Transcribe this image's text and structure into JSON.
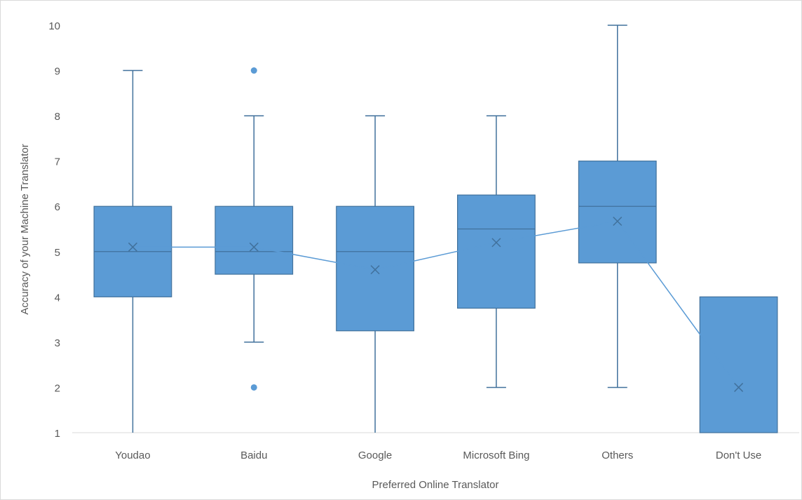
{
  "chart_data": {
    "type": "box",
    "title": "",
    "xlabel": "Preferred Online Translator",
    "ylabel": "Accuracy of your Machine Translator",
    "ylim": [
      1,
      10
    ],
    "yticks": [
      "1",
      "2",
      "3",
      "4",
      "5",
      "6",
      "7",
      "8",
      "9",
      "10"
    ],
    "grid": false,
    "color": "#5b9bd5",
    "edge_color": "#41719c",
    "categories": [
      "Youdao",
      "Baidu",
      "Google",
      "Microsoft Bing",
      "Others",
      "Don't Use"
    ],
    "boxes": [
      {
        "min": 1,
        "q1": 4,
        "median": 5,
        "q3": 6,
        "max": 9,
        "mean": 5.1,
        "outliers": []
      },
      {
        "min": 3,
        "q1": 4.5,
        "median": 5,
        "q3": 6,
        "max": 8,
        "mean": 5.1,
        "outliers": [
          9,
          2
        ]
      },
      {
        "min": 1,
        "q1": 3.25,
        "median": 5,
        "q3": 6,
        "max": 8,
        "mean": 4.6,
        "outliers": []
      },
      {
        "min": 2,
        "q1": 3.75,
        "median": 5.5,
        "q3": 6.25,
        "max": 8,
        "mean": 5.2,
        "outliers": []
      },
      {
        "min": 2,
        "q1": 4.75,
        "median": 6,
        "q3": 7,
        "max": 10,
        "mean": 5.67,
        "outliers": []
      },
      {
        "min": 1,
        "q1": 1,
        "median": 1,
        "q3": 4,
        "max": 4,
        "mean": 2,
        "outliers": []
      }
    ],
    "mean_line": true
  }
}
